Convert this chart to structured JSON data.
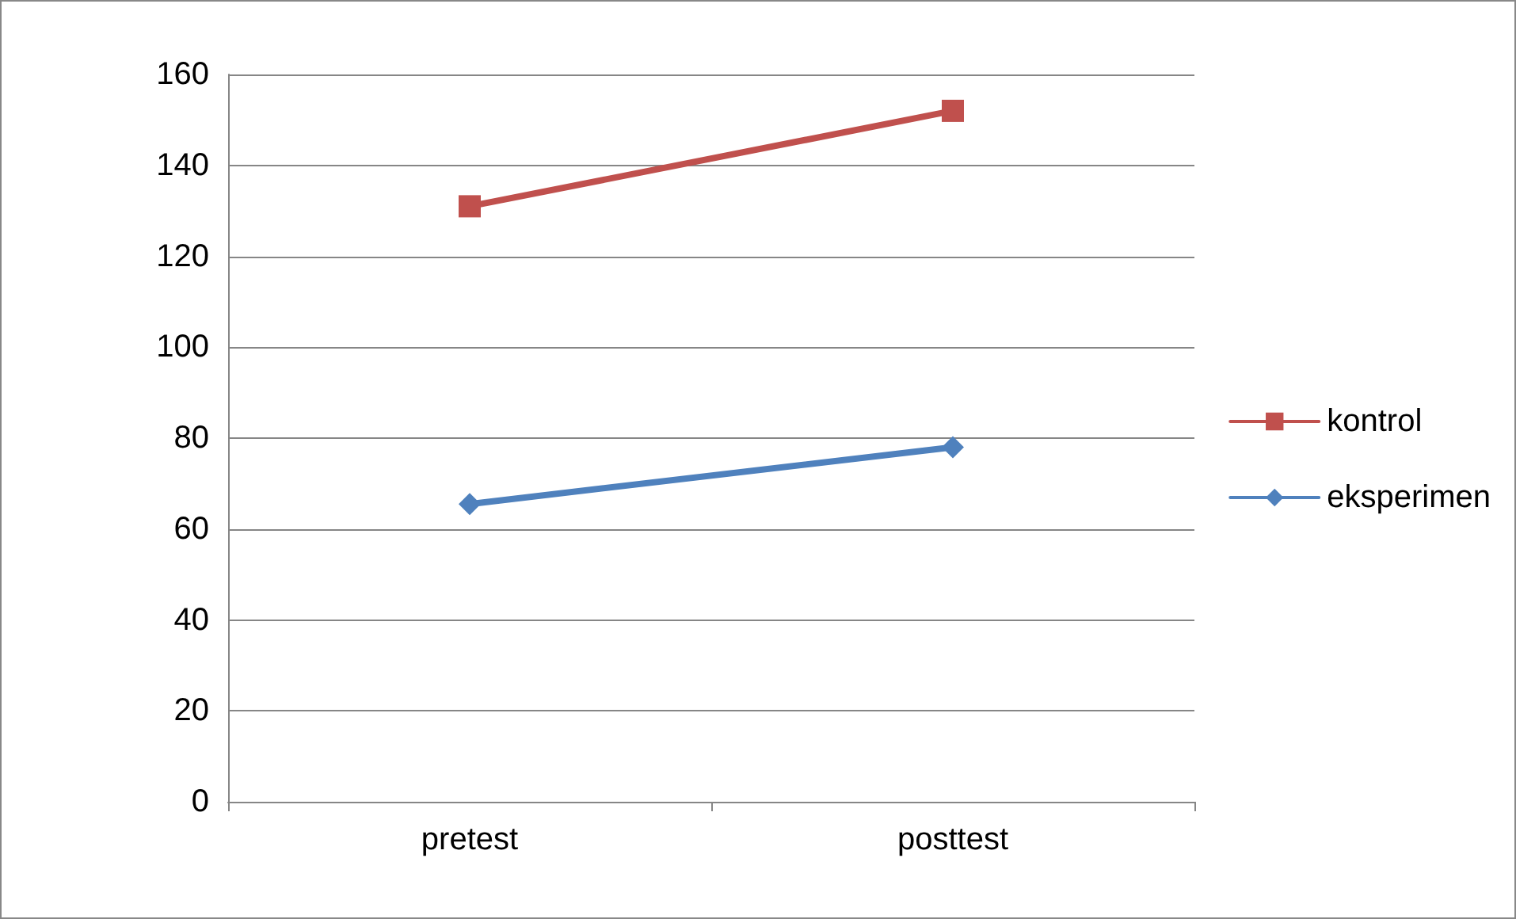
{
  "chart_data": {
    "type": "line",
    "categories": [
      "pretest",
      "posttest"
    ],
    "series": [
      {
        "name": "kontrol",
        "color": "#c0504d",
        "marker": "square",
        "values": [
          131,
          152
        ]
      },
      {
        "name": "eksperimen",
        "color": "#4f81bd",
        "marker": "diamond",
        "values": [
          65.5,
          78
        ]
      }
    ],
    "ylim": [
      0,
      160
    ],
    "yticks": [
      0,
      20,
      40,
      60,
      80,
      100,
      120,
      140,
      160
    ],
    "grid": "y",
    "legend": "right"
  }
}
